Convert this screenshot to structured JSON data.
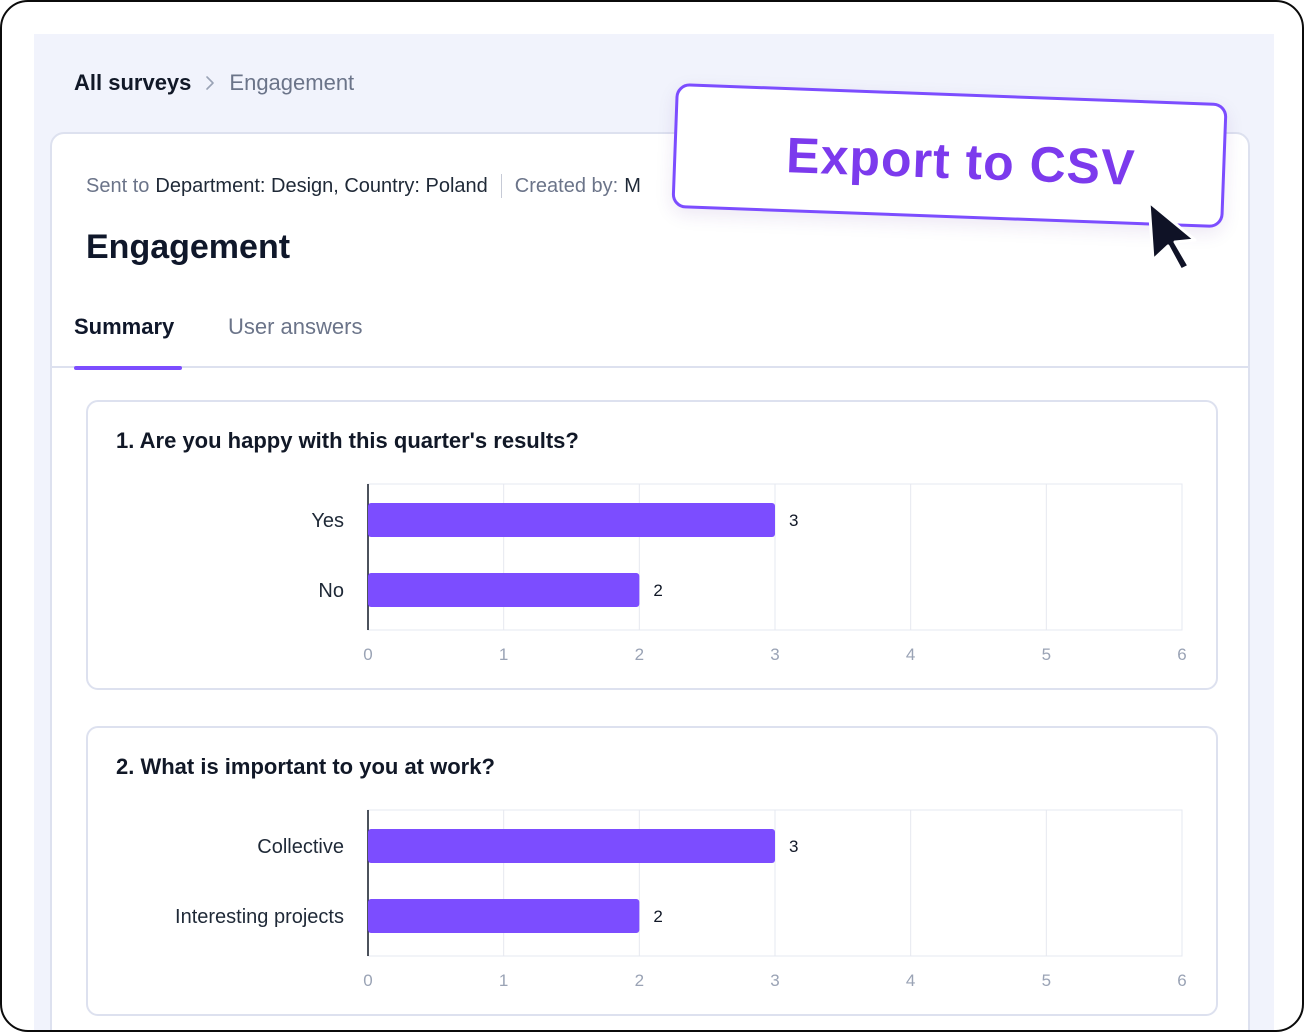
{
  "breadcrumb": {
    "root": "All surveys",
    "current": "Engagement"
  },
  "survey": {
    "sent_to_label": "Sent to",
    "sent_to_value": "Department: Design, Country: Poland",
    "created_by_label": "Created by:",
    "created_by_value": "M",
    "title": "Engagement"
  },
  "tabs": [
    {
      "label": "Summary",
      "active": true
    },
    {
      "label": "User answers",
      "active": false
    }
  ],
  "export_button": {
    "label": "Export to CSV"
  },
  "colors": {
    "accent": "#7c4dff",
    "bar": "#7c4dff",
    "export_text": "#7c3aed"
  },
  "icons": {
    "breadcrumb_separator": "chevron-right-icon",
    "pointer": "mouse-pointer-icon"
  },
  "chart_data": [
    {
      "type": "bar",
      "orientation": "horizontal",
      "title": "1. Are you happy with this quarter's results?",
      "categories": [
        "Yes",
        "No"
      ],
      "values": [
        3,
        2
      ],
      "xlim": [
        0,
        6
      ],
      "xticks": [
        0,
        1,
        2,
        3,
        4,
        5,
        6
      ],
      "grid": true,
      "data_labels": true
    },
    {
      "type": "bar",
      "orientation": "horizontal",
      "title": "2. What is important to you at work?",
      "categories": [
        "Collective",
        "Interesting projects"
      ],
      "values": [
        3,
        2
      ],
      "xlim": [
        0,
        6
      ],
      "xticks": [
        0,
        1,
        2,
        3,
        4,
        5,
        6
      ],
      "grid": true,
      "data_labels": true
    }
  ]
}
